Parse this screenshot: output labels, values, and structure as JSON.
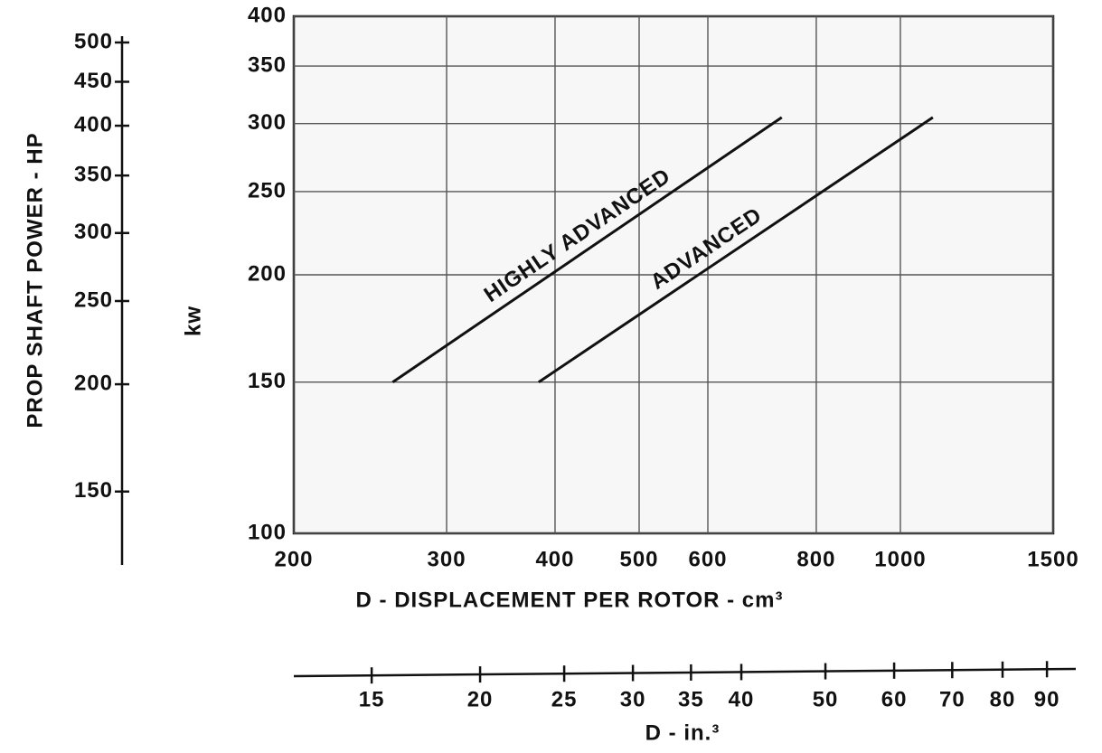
{
  "chart_data": {
    "type": "line",
    "xlabel": "D - DISPLACEMENT PER ROTOR - cm³",
    "ylabel": "kw",
    "y2label": "PROP SHAFT POWER - HP",
    "x2label": "D - in.³",
    "xscale": "log",
    "yscale": "log",
    "grid": true,
    "color": "#111111",
    "xlim": [
      200,
      1500
    ],
    "xticks": [
      200,
      300,
      400,
      500,
      600,
      800,
      1000,
      1500
    ],
    "ylim": [
      100,
      400
    ],
    "yticks": [
      100,
      150,
      200,
      250,
      300,
      350,
      400
    ],
    "y2lim": [
      134.1,
      536.4
    ],
    "y2ticks": [
      150,
      200,
      250,
      300,
      350,
      400,
      450,
      500
    ],
    "x2lim": [
      12.2,
      91.5
    ],
    "x2ticks": [
      15,
      20,
      25,
      30,
      35,
      40,
      50,
      60,
      70,
      80,
      90
    ],
    "series": [
      {
        "name": "HIGHLY ADVANCED",
        "color": "#111111",
        "x": [
          260,
          730
        ],
        "values": [
          150,
          305
        ]
      },
      {
        "name": "ADVANCED",
        "color": "#111111",
        "x": [
          383,
          1090
        ],
        "values": [
          150,
          305
        ]
      }
    ]
  }
}
